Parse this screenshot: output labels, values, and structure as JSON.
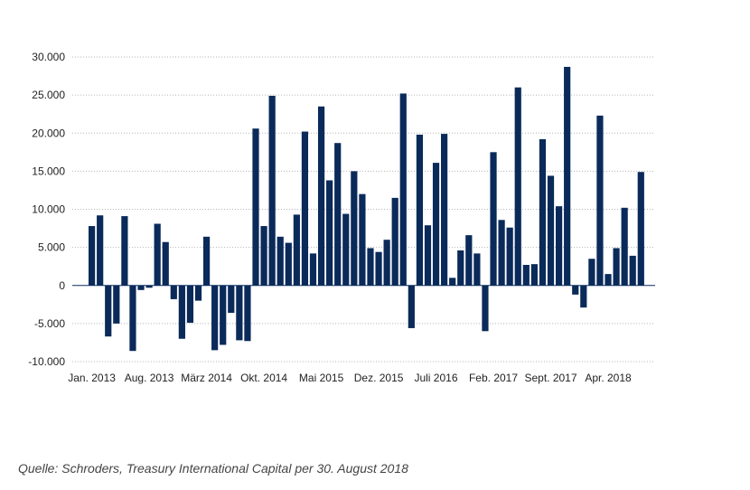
{
  "chart_data": {
    "type": "bar",
    "title": "",
    "xlabel": "",
    "ylabel": "",
    "ylim": [
      -10000,
      30000
    ],
    "yticks": [
      30000,
      25000,
      20000,
      15000,
      10000,
      5000,
      0,
      -5000,
      -10000
    ],
    "ytick_labels": [
      "30.000",
      "25.000",
      "20.000",
      "15.000",
      "10.000",
      "5.000",
      "0",
      "-5.000",
      "-10.000"
    ],
    "grid": true,
    "legend": "none",
    "bar_color": "#0a2a5a",
    "xtick_labels": [
      {
        "index": 0,
        "label": "Jan. 2013"
      },
      {
        "index": 7,
        "label": "Aug. 2013"
      },
      {
        "index": 14,
        "label": "März 2014"
      },
      {
        "index": 21,
        "label": "Okt. 2014"
      },
      {
        "index": 28,
        "label": "Mai 2015"
      },
      {
        "index": 35,
        "label": "Dez. 2015"
      },
      {
        "index": 42,
        "label": "Juli 2016"
      },
      {
        "index": 49,
        "label": "Feb. 2017"
      },
      {
        "index": 56,
        "label": "Sept. 2017"
      },
      {
        "index": 63,
        "label": "Apr. 2018"
      }
    ],
    "values": [
      7800,
      9200,
      -6700,
      -5000,
      9100,
      -8600,
      -600,
      -300,
      8100,
      5700,
      -1800,
      -7000,
      -4900,
      -2000,
      6400,
      -8500,
      -7800,
      -3600,
      -7200,
      -7300,
      20600,
      7800,
      24900,
      6400,
      5600,
      9300,
      20200,
      4200,
      23500,
      13800,
      18700,
      9400,
      15000,
      12000,
      4900,
      4400,
      6000,
      11500,
      25200,
      -5600,
      19800,
      7900,
      16100,
      19900,
      1000,
      4600,
      6600,
      4200,
      -6000,
      17500,
      8600,
      7600,
      26000,
      2700,
      2800,
      19200,
      14400,
      10400,
      28700,
      -1200,
      -2900,
      3500,
      22300,
      1500,
      4900,
      10200,
      3900,
      14900
    ]
  },
  "source": "Quelle: Schroders, Treasury International Capital per 30. August 2018"
}
